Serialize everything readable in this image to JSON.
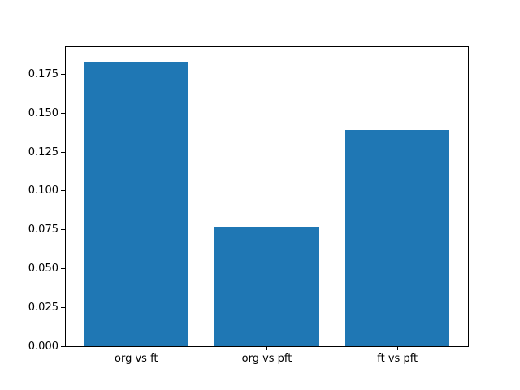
{
  "figure": {
    "background": "#ffffff"
  },
  "chart_data": {
    "type": "bar",
    "categories": [
      "org vs ft",
      "org vs pft",
      "ft vs pft"
    ],
    "values": [
      0.183,
      0.077,
      0.139
    ],
    "title": "",
    "xlabel": "",
    "ylabel": "",
    "bar_color": "#1f77b4",
    "bar_width": 0.8,
    "xlim": [
      -0.54,
      2.54
    ],
    "ylim": [
      0,
      0.1925
    ],
    "grid": false,
    "legend": "none",
    "yticks": [
      {
        "value": 0.0,
        "label": "0.000"
      },
      {
        "value": 0.025,
        "label": "0.025"
      },
      {
        "value": 0.05,
        "label": "0.050"
      },
      {
        "value": 0.075,
        "label": "0.075"
      },
      {
        "value": 0.1,
        "label": "0.100"
      },
      {
        "value": 0.125,
        "label": "0.125"
      },
      {
        "value": 0.15,
        "label": "0.150"
      },
      {
        "value": 0.175,
        "label": "0.175"
      }
    ]
  }
}
